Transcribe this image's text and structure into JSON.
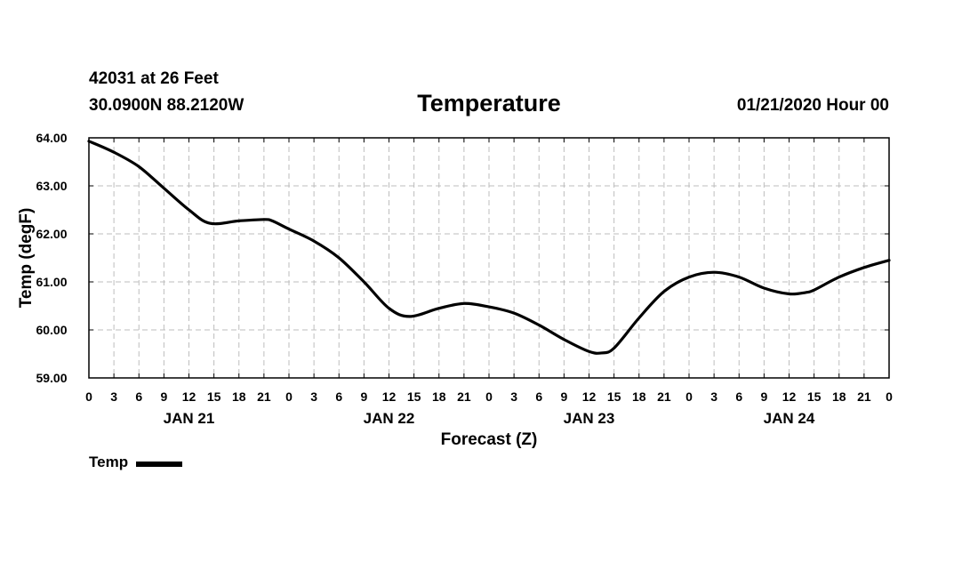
{
  "header": {
    "station": "42031 at 26 Feet",
    "coords": "30.0900N 88.2120W",
    "run_time": "01/21/2020 Hour 00"
  },
  "legend": {
    "label": "Temp"
  },
  "chart_data": {
    "type": "line",
    "title": "Temperature",
    "xlabel": "Forecast (Z)",
    "ylabel": "Temp (degF)",
    "xlim": [
      0,
      96
    ],
    "ylim": [
      59,
      64
    ],
    "y_ticks": [
      "59.00",
      "60.00",
      "61.00",
      "62.00",
      "63.00",
      "64.00"
    ],
    "x_tick_labels": [
      "0",
      "3",
      "6",
      "9",
      "12",
      "15",
      "18",
      "21",
      "0",
      "3",
      "6",
      "9",
      "12",
      "15",
      "18",
      "21",
      "0",
      "3",
      "6",
      "9",
      "12",
      "15",
      "18",
      "21",
      "0",
      "3",
      "6",
      "9",
      "12",
      "15",
      "18",
      "21",
      "0"
    ],
    "day_labels": [
      "JAN 21",
      "JAN 22",
      "JAN 23",
      "JAN 24"
    ],
    "day_label_hours": [
      12,
      36,
      60,
      84
    ],
    "grid": true,
    "legend_position": "bottom-left",
    "series": [
      {
        "name": "Temp",
        "x": [
          0,
          3,
          6,
          9,
          12,
          14.5,
          18,
          21,
          22,
          24,
          27,
          30,
          33,
          36,
          38.5,
          42,
          45,
          48,
          51,
          54,
          57,
          60,
          61.5,
          63,
          66,
          69,
          72,
          75,
          78,
          81,
          84,
          86,
          87,
          90,
          93,
          96
        ],
        "y": [
          63.93,
          63.7,
          63.4,
          62.95,
          62.5,
          62.22,
          62.27,
          62.3,
          62.27,
          62.1,
          61.85,
          61.5,
          61.0,
          60.45,
          60.28,
          60.45,
          60.55,
          60.48,
          60.35,
          60.1,
          59.8,
          59.55,
          59.52,
          59.62,
          60.25,
          60.8,
          61.1,
          61.2,
          61.1,
          60.87,
          60.75,
          60.78,
          60.83,
          61.1,
          61.3,
          61.45
        ]
      }
    ]
  }
}
